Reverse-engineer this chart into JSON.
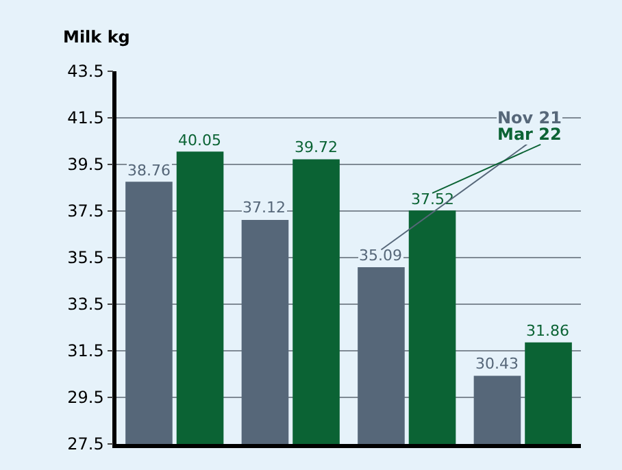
{
  "chart_data": {
    "type": "bar",
    "ylabel": "Milk kg",
    "categories": [
      null,
      null,
      null,
      null
    ],
    "series": [
      {
        "name": "Nov 21",
        "color": "#566779",
        "values": [
          38.76,
          37.12,
          35.09,
          30.43
        ]
      },
      {
        "name": "Mar 22",
        "color": "#0b6334",
        "values": [
          40.05,
          39.72,
          37.52,
          31.86
        ]
      }
    ],
    "ylim": [
      27.5,
      43.5
    ],
    "yticks": [
      27.5,
      29.5,
      31.5,
      33.5,
      35.5,
      37.5,
      39.5,
      41.5,
      43.5
    ],
    "grid": "y",
    "data_labels": true
  }
}
